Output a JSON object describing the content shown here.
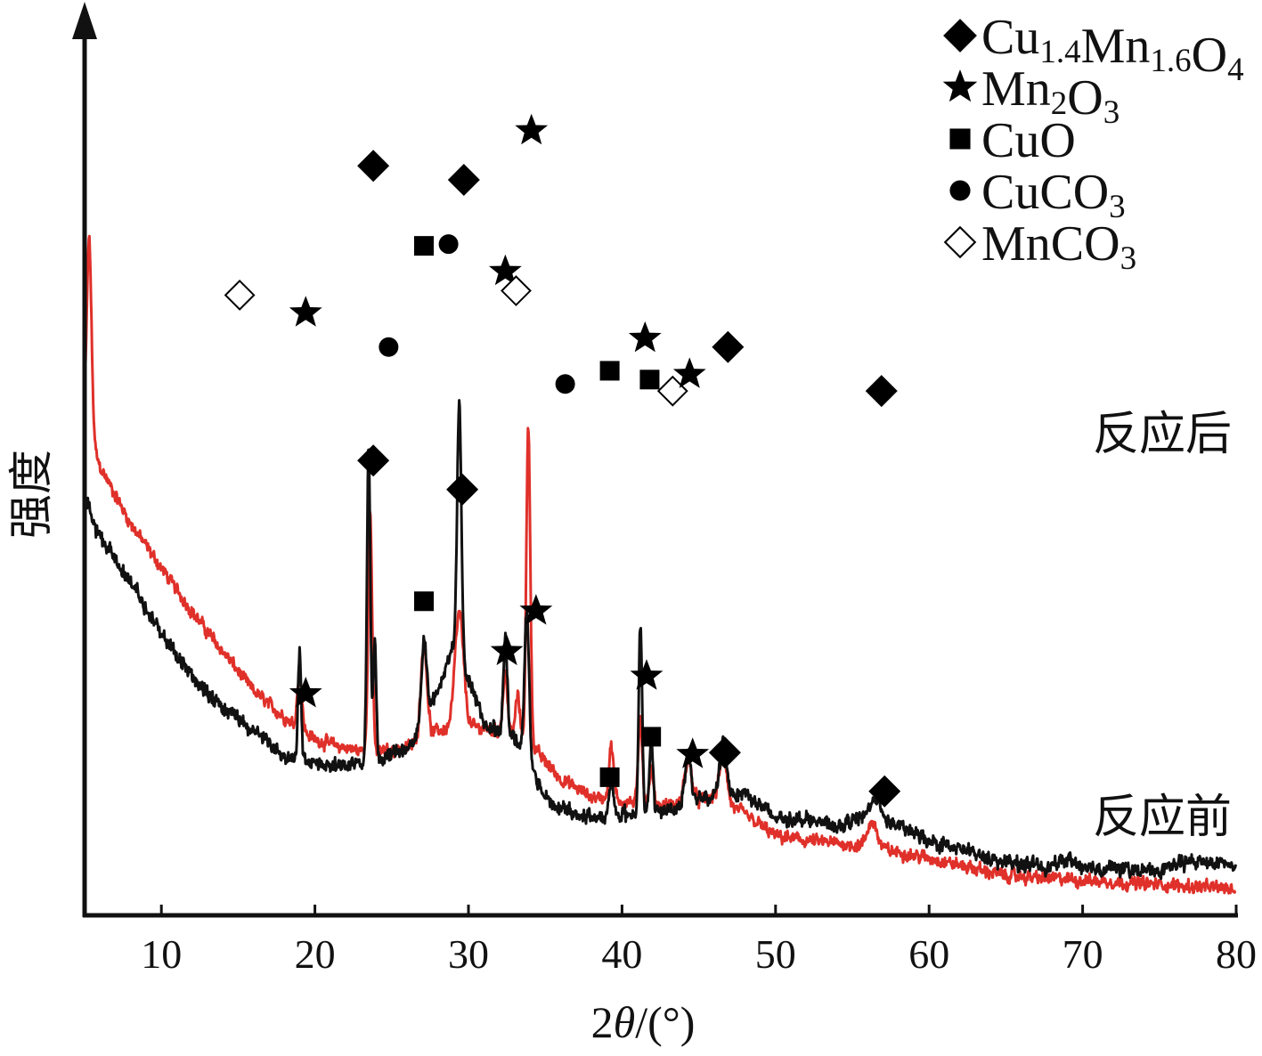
{
  "chart_data": {
    "type": "line",
    "xlabel": "2θ/(°)",
    "ylabel": "强度",
    "xlim": [
      5,
      80
    ],
    "x_ticks": [
      "10",
      "20",
      "30",
      "40",
      "50",
      "60",
      "70",
      "80"
    ],
    "y_ticks": [],
    "grid": false,
    "legend_position": "top-right",
    "colors": {
      "after": "#e0302a",
      "before": "#111111",
      "axis": "#111111"
    },
    "legend": [
      {
        "marker": "filled-diamond",
        "base": "Cu",
        "sub1": "1.4",
        "mid": "Mn",
        "sub2": "1.6",
        "end": "O",
        "sub3": "4"
      },
      {
        "marker": "filled-star",
        "base": "Mn",
        "sub1": "2",
        "mid": "O",
        "sub2": "3",
        "end": "",
        "sub3": ""
      },
      {
        "marker": "filled-square",
        "base": "CuO",
        "sub1": "",
        "mid": "",
        "sub2": "",
        "end": "",
        "sub3": ""
      },
      {
        "marker": "filled-circle",
        "base": "CuCO",
        "sub1": "3",
        "mid": "",
        "sub2": "",
        "end": "",
        "sub3": ""
      },
      {
        "marker": "open-diamond",
        "base": "MnCO",
        "sub1": "3",
        "mid": "",
        "sub2": "",
        "end": "",
        "sub3": ""
      }
    ],
    "series": [
      {
        "name": "反应后",
        "color": "#e0302a",
        "baseline": [
          [
            5,
            0.565
          ],
          [
            6,
            0.51
          ],
          [
            8,
            0.445
          ],
          [
            10,
            0.395
          ],
          [
            12,
            0.345
          ],
          [
            14,
            0.3
          ],
          [
            16,
            0.255
          ],
          [
            18,
            0.225
          ],
          [
            20,
            0.2
          ],
          [
            22,
            0.19
          ],
          [
            24,
            0.185
          ],
          [
            26,
            0.19
          ],
          [
            28,
            0.21
          ],
          [
            30,
            0.215
          ],
          [
            32,
            0.21
          ],
          [
            33,
            0.2
          ],
          [
            34,
            0.195
          ],
          [
            35,
            0.175
          ],
          [
            36,
            0.155
          ],
          [
            38,
            0.135
          ],
          [
            40,
            0.13
          ],
          [
            42,
            0.125
          ],
          [
            44,
            0.125
          ],
          [
            46,
            0.135
          ],
          [
            48,
            0.115
          ],
          [
            50,
            0.09
          ],
          [
            52,
            0.085
          ],
          [
            55,
            0.08
          ],
          [
            57,
            0.075
          ],
          [
            60,
            0.065
          ],
          [
            65,
            0.045
          ],
          [
            70,
            0.04
          ],
          [
            75,
            0.035
          ],
          [
            80,
            0.03
          ]
        ],
        "peaks": [
          [
            5.3,
            0.22,
            0.15
          ],
          [
            19.0,
            0.06,
            0.15
          ],
          [
            23.6,
            0.27,
            0.13
          ],
          [
            27.1,
            0.11,
            0.2
          ],
          [
            29.4,
            0.13,
            0.28
          ],
          [
            32.4,
            0.07,
            0.15
          ],
          [
            33.2,
            0.05,
            0.15
          ],
          [
            33.9,
            0.36,
            0.13
          ],
          [
            39.3,
            0.06,
            0.15
          ],
          [
            41.2,
            0.1,
            0.13
          ],
          [
            41.9,
            0.04,
            0.13
          ],
          [
            44.3,
            0.05,
            0.25
          ],
          [
            46.6,
            0.06,
            0.22
          ],
          [
            56.3,
            0.03,
            0.3
          ]
        ],
        "noise": 0.008
      },
      {
        "name": "反应前",
        "color": "#111111",
        "baseline": [
          [
            5,
            0.455
          ],
          [
            6,
            0.43
          ],
          [
            8,
            0.38
          ],
          [
            10,
            0.32
          ],
          [
            12,
            0.27
          ],
          [
            14,
            0.235
          ],
          [
            16,
            0.21
          ],
          [
            18,
            0.18
          ],
          [
            20,
            0.175
          ],
          [
            22,
            0.17
          ],
          [
            24,
            0.175
          ],
          [
            26,
            0.19
          ],
          [
            27,
            0.21
          ],
          [
            28,
            0.255
          ],
          [
            29,
            0.305
          ],
          [
            30,
            0.27
          ],
          [
            31,
            0.22
          ],
          [
            32,
            0.21
          ],
          [
            33,
            0.2
          ],
          [
            34,
            0.17
          ],
          [
            35,
            0.135
          ],
          [
            36,
            0.12
          ],
          [
            38,
            0.11
          ],
          [
            40,
            0.115
          ],
          [
            42,
            0.115
          ],
          [
            44,
            0.125
          ],
          [
            46,
            0.135
          ],
          [
            48,
            0.14
          ],
          [
            50,
            0.11
          ],
          [
            52,
            0.11
          ],
          [
            54,
            0.1
          ],
          [
            56,
            0.115
          ],
          [
            57,
            0.11
          ],
          [
            60,
            0.085
          ],
          [
            65,
            0.06
          ],
          [
            68,
            0.055
          ],
          [
            69,
            0.065
          ],
          [
            70,
            0.055
          ],
          [
            75,
            0.05
          ],
          [
            77,
            0.062
          ],
          [
            80,
            0.058
          ]
        ],
        "peaks": [
          [
            5.3,
            0.02,
            0.2
          ],
          [
            19.0,
            0.12,
            0.1
          ],
          [
            23.5,
            0.36,
            0.11
          ],
          [
            23.9,
            0.14,
            0.1
          ],
          [
            27.1,
            0.1,
            0.18
          ],
          [
            29.4,
            0.29,
            0.14
          ],
          [
            32.4,
            0.11,
            0.13
          ],
          [
            33.8,
            0.17,
            0.15
          ],
          [
            39.3,
            0.04,
            0.15
          ],
          [
            41.2,
            0.22,
            0.11
          ],
          [
            41.9,
            0.09,
            0.11
          ],
          [
            44.3,
            0.06,
            0.2
          ],
          [
            46.6,
            0.06,
            0.22
          ],
          [
            56.5,
            0.02,
            0.3
          ]
        ],
        "noise": 0.009
      }
    ],
    "annotations": {
      "after": [
        {
          "marker": "open-diamond",
          "x": 15.1,
          "y": 0.705
        },
        {
          "marker": "filled-star",
          "x": 19.4,
          "y": 0.685
        },
        {
          "marker": "filled-diamond",
          "x": 23.8,
          "y": 0.852
        },
        {
          "marker": "filled-circle",
          "x": 24.8,
          "y": 0.646
        },
        {
          "marker": "filled-square",
          "x": 27.1,
          "y": 0.761
        },
        {
          "marker": "filled-circle",
          "x": 28.7,
          "y": 0.763
        },
        {
          "marker": "filled-diamond",
          "x": 29.7,
          "y": 0.836
        },
        {
          "marker": "filled-star",
          "x": 32.4,
          "y": 0.732
        },
        {
          "marker": "open-diamond",
          "x": 33.1,
          "y": 0.71
        },
        {
          "marker": "filled-star",
          "x": 34.1,
          "y": 0.892
        },
        {
          "marker": "filled-circle",
          "x": 36.3,
          "y": 0.604
        },
        {
          "marker": "filled-square",
          "x": 39.2,
          "y": 0.619
        },
        {
          "marker": "filled-star",
          "x": 41.5,
          "y": 0.656
        },
        {
          "marker": "filled-square",
          "x": 41.8,
          "y": 0.609
        },
        {
          "marker": "open-diamond",
          "x": 43.3,
          "y": 0.596
        },
        {
          "marker": "filled-star",
          "x": 44.4,
          "y": 0.615
        },
        {
          "marker": "filled-diamond",
          "x": 46.9,
          "y": 0.646
        },
        {
          "marker": "filled-diamond",
          "x": 56.9,
          "y": 0.596
        }
      ],
      "before": [
        {
          "marker": "filled-star",
          "x": 19.4,
          "y": 0.252
        },
        {
          "marker": "filled-diamond",
          "x": 23.8,
          "y": 0.517
        },
        {
          "marker": "filled-square",
          "x": 27.1,
          "y": 0.357
        },
        {
          "marker": "filled-diamond",
          "x": 29.6,
          "y": 0.484
        },
        {
          "marker": "filled-star",
          "x": 32.5,
          "y": 0.3
        },
        {
          "marker": "filled-star",
          "x": 34.4,
          "y": 0.346
        },
        {
          "marker": "filled-square",
          "x": 39.2,
          "y": 0.157
        },
        {
          "marker": "filled-star",
          "x": 41.6,
          "y": 0.272
        },
        {
          "marker": "filled-square",
          "x": 41.9,
          "y": 0.203
        },
        {
          "marker": "filled-star",
          "x": 44.6,
          "y": 0.183
        },
        {
          "marker": "filled-diamond",
          "x": 46.7,
          "y": 0.185
        },
        {
          "marker": "filled-diamond",
          "x": 57.1,
          "y": 0.141
        }
      ]
    }
  }
}
